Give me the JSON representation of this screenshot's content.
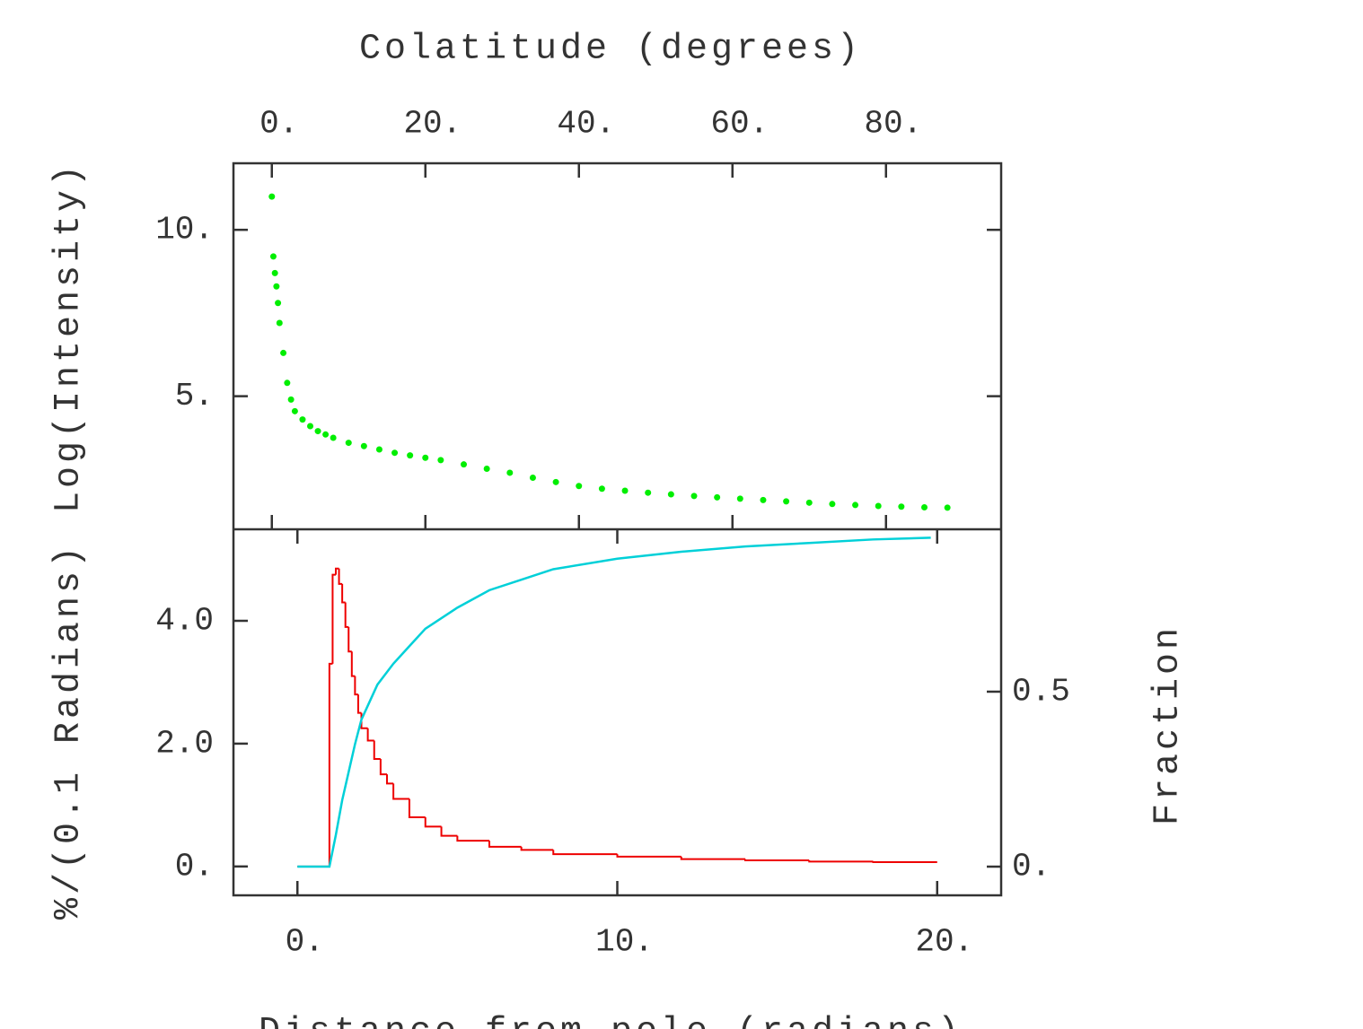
{
  "chart_data": [
    {
      "type": "scatter",
      "xlabel": "Colatitude (degrees)",
      "ylabel": "Log(Intensity)",
      "x": [
        0,
        0.2,
        0.4,
        0.6,
        0.8,
        1,
        1.5,
        2,
        2.5,
        3,
        4,
        5,
        6,
        7,
        8,
        10,
        12,
        14,
        16,
        18,
        20,
        22,
        25,
        28,
        31,
        34,
        37,
        40,
        43,
        46,
        49,
        52,
        55,
        58,
        61,
        64,
        67,
        70,
        73,
        76,
        79,
        82,
        85,
        88
      ],
      "series": [
        {
          "color": "#00ee00",
          "values": [
            11,
            9.2,
            8.7,
            8.3,
            7.8,
            7.2,
            6.3,
            5.4,
            4.9,
            4.55,
            4.3,
            4.1,
            3.95,
            3.85,
            3.75,
            3.6,
            3.5,
            3.4,
            3.3,
            3.22,
            3.15,
            3.08,
            2.95,
            2.82,
            2.7,
            2.55,
            2.42,
            2.3,
            2.22,
            2.16,
            2.1,
            2.05,
            2,
            1.96,
            1.92,
            1.88,
            1.84,
            1.8,
            1.76,
            1.73,
            1.7,
            1.68,
            1.66,
            1.65
          ]
        }
      ],
      "xlim": [
        -5,
        95
      ],
      "xticks": [
        {
          "value": 0,
          "label": "0."
        },
        {
          "value": 20,
          "label": "20."
        },
        {
          "value": 40,
          "label": "40."
        },
        {
          "value": 60,
          "label": "60."
        },
        {
          "value": 80,
          "label": "80."
        }
      ],
      "ylim": [
        1,
        12
      ],
      "yticks": [
        {
          "value": 5,
          "label": "5."
        },
        {
          "value": 10,
          "label": "10."
        }
      ]
    },
    {
      "type": "histogram",
      "xlabel": "Distance from pole (radians)",
      "ylabel": "%/(0.1 Radians)",
      "y2label": "Fraction",
      "bins": [
        0,
        1,
        1.1,
        1.2,
        1.3,
        1.4,
        1.5,
        1.6,
        1.7,
        1.8,
        1.9,
        2,
        2.2,
        2.4,
        2.6,
        2.8,
        3,
        3.5,
        4,
        4.5,
        5,
        6,
        7,
        8,
        10,
        12,
        14,
        16,
        18,
        20
      ],
      "values": [
        0,
        3.3,
        4.75,
        4.85,
        4.6,
        4.3,
        3.9,
        3.5,
        3.1,
        2.8,
        2.5,
        2.25,
        2.05,
        1.75,
        1.5,
        1.35,
        1.1,
        0.8,
        0.65,
        0.5,
        0.42,
        0.32,
        0.27,
        0.2,
        0.16,
        0.12,
        0.1,
        0.08,
        0.07
      ],
      "color": "#ee0000",
      "series": [
        {
          "axis": "y2",
          "color": "#00d0d8",
          "x": [
            0,
            1,
            1.2,
            1.4,
            1.6,
            1.8,
            2,
            2.5,
            3,
            3.5,
            4,
            5,
            6,
            7,
            8,
            10,
            12,
            14,
            16,
            18,
            19.8
          ],
          "values": [
            0,
            0,
            0.09,
            0.19,
            0.27,
            0.35,
            0.42,
            0.52,
            0.58,
            0.63,
            0.68,
            0.74,
            0.79,
            0.82,
            0.85,
            0.88,
            0.9,
            0.915,
            0.925,
            0.935,
            0.94
          ]
        }
      ],
      "xlim": [
        -2,
        22
      ],
      "xticks": [
        {
          "value": 0,
          "label": "0."
        },
        {
          "value": 10,
          "label": "10."
        },
        {
          "value": 20,
          "label": "20."
        }
      ],
      "ylim": [
        -0.47,
        5.49
      ],
      "yticks": [
        {
          "value": 0,
          "label": "0."
        },
        {
          "value": 2,
          "label": "2.0"
        },
        {
          "value": 4,
          "label": "4.0"
        }
      ],
      "y2lim": [
        -0.082,
        0.964
      ],
      "y2ticks": [
        {
          "value": 0,
          "label": "0."
        },
        0.5
      ]
    }
  ]
}
